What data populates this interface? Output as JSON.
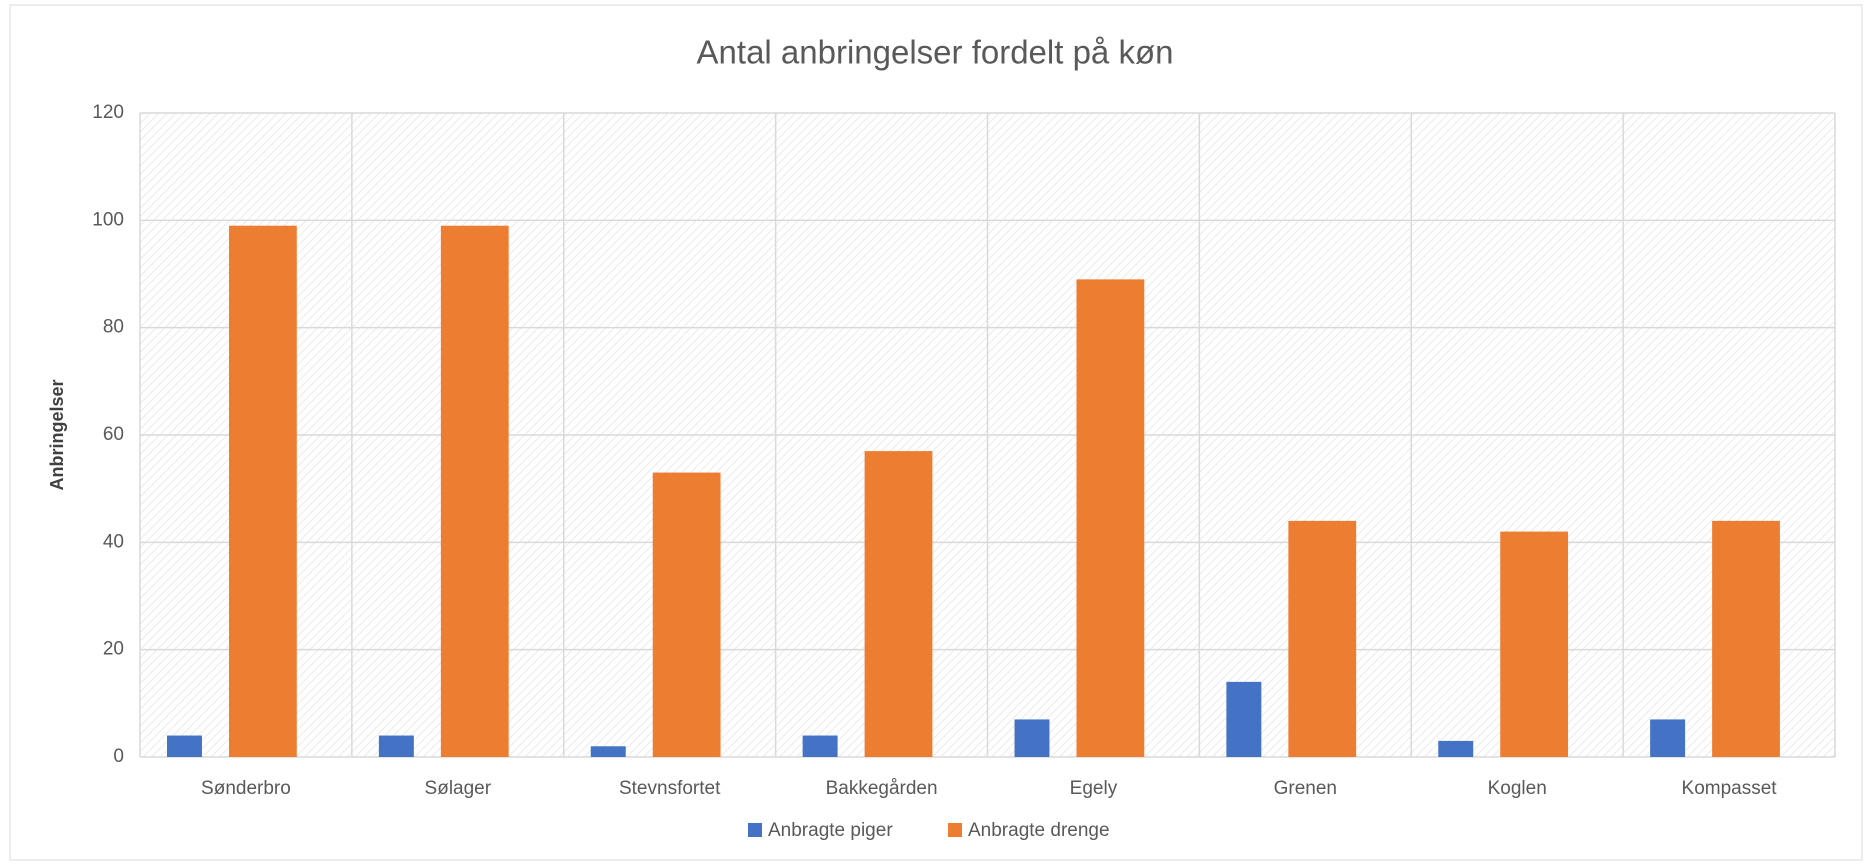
{
  "chart_data": {
    "type": "bar",
    "title": "Antal anbringelser fordelt på køn",
    "y_label": "Anbringelser",
    "categories": [
      "Sønderbro",
      "Sølager",
      "Stevnsfortet",
      "Bakkegården",
      "Egely",
      "Grenen",
      "Koglen",
      "Kompasset"
    ],
    "series": [
      {
        "name": "Anbragte piger",
        "color": "#4472c4",
        "values": [
          4,
          4,
          2,
          4,
          7,
          14,
          3,
          7
        ]
      },
      {
        "name": "Anbragte drenge",
        "color": "#ed7d31",
        "values": [
          99,
          99,
          53,
          57,
          89,
          44,
          42,
          44
        ]
      }
    ],
    "ylim": [
      0,
      120
    ],
    "yticks": [
      0,
      20,
      40,
      60,
      80,
      100,
      120
    ],
    "grid": true,
    "legend": "bottom"
  }
}
